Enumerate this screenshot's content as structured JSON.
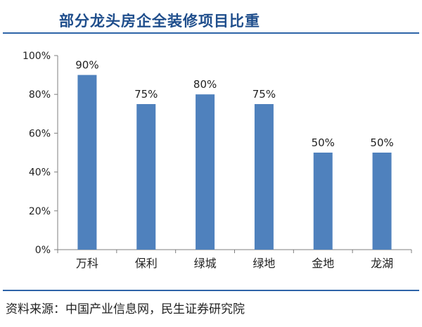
{
  "title": "部分龙头房企全装修项目比重",
  "source": "资料来源：中国产业信息网，民生证券研究院",
  "colors": {
    "bar": "#4f81bd",
    "title": "#1f4e8c",
    "rule": "#2e64a8",
    "axis": "#7f7f7f"
  },
  "chart_data": {
    "type": "bar",
    "title": "部分龙头房企全装修项目比重",
    "categories": [
      "万科",
      "保利",
      "绿城",
      "绿地",
      "金地",
      "龙湖"
    ],
    "values": [
      90,
      75,
      80,
      75,
      50,
      50
    ],
    "data_labels": [
      "90%",
      "75%",
      "80%",
      "75%",
      "50%",
      "50%"
    ],
    "ylim": [
      0,
      100
    ],
    "yticks": [
      0,
      20,
      40,
      60,
      80,
      100
    ],
    "ytick_labels": [
      "0%",
      "20%",
      "40%",
      "60%",
      "80%",
      "100%"
    ],
    "xlabel": "",
    "ylabel": "",
    "grid": false,
    "legend": "none"
  }
}
